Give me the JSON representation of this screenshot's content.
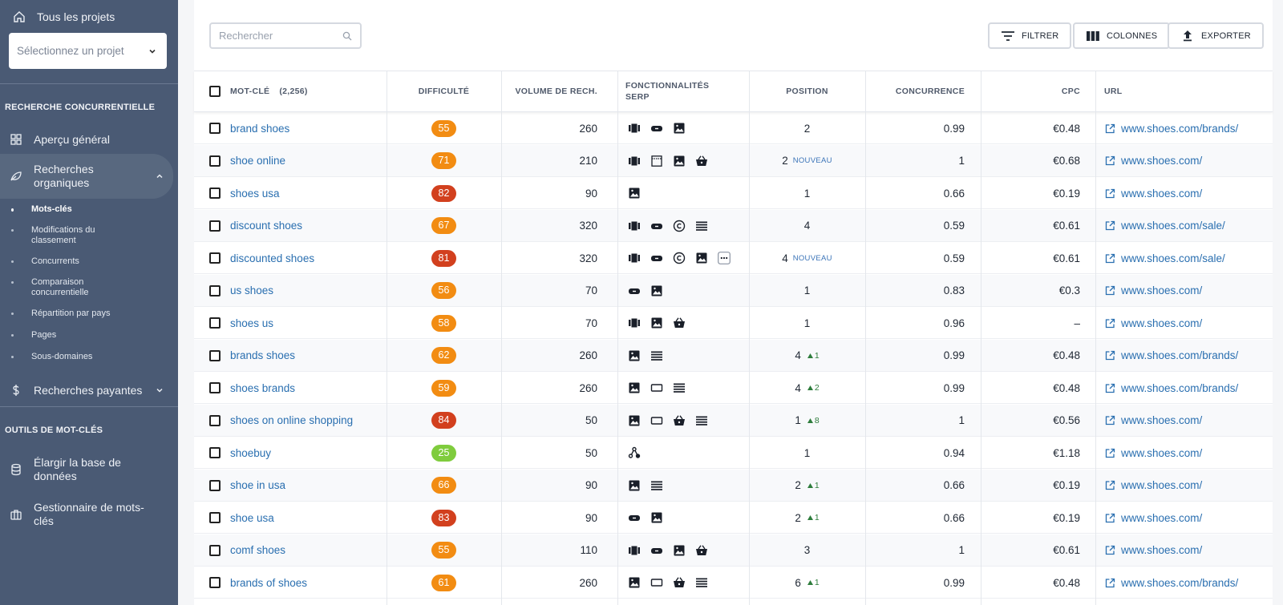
{
  "sidebar": {
    "all_projects": "Tous les projets",
    "project_select_placeholder": "Sélectionnez un projet",
    "section_competitive": "RECHERCHE CONCURRENTIELLE",
    "overview": "Aperçu général",
    "organic": "Recherches organiques",
    "sub_items": [
      "Mots-clés",
      "Modifications du classement",
      "Concurrents",
      "Comparaison concurrentielle",
      "Répartition par pays",
      "Pages",
      "Sous-domaines"
    ],
    "paid": "Recherches payantes",
    "section_tools": "OUTILS DE MOT-CLÉS",
    "expand_db": "Élargir la base de données",
    "keyword_manager": "Gestionnaire de mots-clés"
  },
  "toolbar": {
    "search_placeholder": "Rechercher",
    "filter": "FILTRER",
    "columns": "COLONNES",
    "export": "EXPORTER"
  },
  "table": {
    "headers": {
      "keyword": "MOT-CLÉ",
      "keyword_count": "(2,256)",
      "difficulty": "DIFFICULTÉ",
      "volume": "VOLUME DE RECH.",
      "serp": "FONCTIONNALITÉS SERP",
      "position": "POSITION",
      "competition": "CONCURRENCE",
      "cpc": "CPC",
      "url": "URL"
    },
    "new_label": "NOUVEAU",
    "rows": [
      {
        "kw": "brand shoes",
        "diff": "55",
        "diff_color": "#f28c12",
        "vol": "260",
        "serp": [
          "carousel-icon",
          "video-icon",
          "image-icon"
        ],
        "pos": "2",
        "new": false,
        "delta": "",
        "comp": "0.99",
        "cpc": "€0.48",
        "url": "www.shoes.com/brands/"
      },
      {
        "kw": "shoe online",
        "diff": "71",
        "diff_color": "#f28c12",
        "vol": "210",
        "serp": [
          "carousel-icon",
          "snippet-icon",
          "image-icon",
          "shopping-icon"
        ],
        "pos": "2",
        "new": true,
        "delta": "",
        "comp": "1",
        "cpc": "€0.68",
        "url": "www.shoes.com/"
      },
      {
        "kw": "shoes usa",
        "diff": "82",
        "diff_color": "#d2401e",
        "vol": "90",
        "serp": [
          "image-icon"
        ],
        "pos": "1",
        "new": false,
        "delta": "",
        "comp": "0.66",
        "cpc": "€0.19",
        "url": "www.shoes.com/"
      },
      {
        "kw": "discount shoes",
        "diff": "67",
        "diff_color": "#f28c12",
        "vol": "320",
        "serp": [
          "carousel-icon",
          "video-icon",
          "copyright-icon",
          "list-icon"
        ],
        "pos": "4",
        "new": false,
        "delta": "",
        "comp": "0.59",
        "cpc": "€0.61",
        "url": "www.shoes.com/sale/"
      },
      {
        "kw": "discounted shoes",
        "diff": "81",
        "diff_color": "#d2401e",
        "vol": "320",
        "serp": [
          "carousel-icon",
          "video-icon",
          "copyright-icon",
          "image-icon",
          "more-icon"
        ],
        "pos": "4",
        "new": true,
        "delta": "",
        "comp": "0.59",
        "cpc": "€0.61",
        "url": "www.shoes.com/sale/"
      },
      {
        "kw": "us shoes",
        "diff": "56",
        "diff_color": "#f28c12",
        "vol": "70",
        "serp": [
          "video-icon",
          "image-icon"
        ],
        "pos": "1",
        "new": false,
        "delta": "",
        "comp": "0.83",
        "cpc": "€0.3",
        "url": "www.shoes.com/"
      },
      {
        "kw": "shoes us",
        "diff": "58",
        "diff_color": "#f28c12",
        "vol": "70",
        "serp": [
          "carousel-icon",
          "image-icon",
          "shopping-icon"
        ],
        "pos": "1",
        "new": false,
        "delta": "",
        "comp": "0.96",
        "cpc": "–",
        "url": "www.shoes.com/"
      },
      {
        "kw": "brands shoes",
        "diff": "62",
        "diff_color": "#f28c12",
        "vol": "260",
        "serp": [
          "image-icon",
          "list-icon"
        ],
        "pos": "4",
        "new": false,
        "delta": "1",
        "comp": "0.99",
        "cpc": "€0.48",
        "url": "www.shoes.com/brands/"
      },
      {
        "kw": "shoes brands",
        "diff": "59",
        "diff_color": "#f28c12",
        "vol": "260",
        "serp": [
          "image-icon",
          "ad-icon",
          "list-icon"
        ],
        "pos": "4",
        "new": false,
        "delta": "2",
        "comp": "0.99",
        "cpc": "€0.48",
        "url": "www.shoes.com/brands/"
      },
      {
        "kw": "shoes on online shopping",
        "diff": "84",
        "diff_color": "#d2401e",
        "vol": "50",
        "serp": [
          "image-icon",
          "ad-icon",
          "shopping-icon",
          "list-icon"
        ],
        "pos": "1",
        "new": false,
        "delta": "8",
        "comp": "1",
        "cpc": "€0.56",
        "url": "www.shoes.com/"
      },
      {
        "kw": "shoebuy",
        "diff": "25",
        "diff_color": "#7fcc3d",
        "vol": "50",
        "serp": [
          "graph-icon"
        ],
        "pos": "1",
        "new": false,
        "delta": "",
        "comp": "0.94",
        "cpc": "€1.18",
        "url": "www.shoes.com/"
      },
      {
        "kw": "shoe in usa",
        "diff": "66",
        "diff_color": "#f28c12",
        "vol": "90",
        "serp": [
          "image-icon",
          "list-icon"
        ],
        "pos": "2",
        "new": false,
        "delta": "1",
        "comp": "0.66",
        "cpc": "€0.19",
        "url": "www.shoes.com/"
      },
      {
        "kw": "shoe usa",
        "diff": "83",
        "diff_color": "#d2401e",
        "vol": "90",
        "serp": [
          "video-icon",
          "image-icon"
        ],
        "pos": "2",
        "new": false,
        "delta": "1",
        "comp": "0.66",
        "cpc": "€0.19",
        "url": "www.shoes.com/"
      },
      {
        "kw": "comf shoes",
        "diff": "55",
        "diff_color": "#f28c12",
        "vol": "110",
        "serp": [
          "carousel-icon",
          "video-icon",
          "image-icon",
          "shopping-icon"
        ],
        "pos": "3",
        "new": false,
        "delta": "",
        "comp": "1",
        "cpc": "€0.61",
        "url": "www.shoes.com/"
      },
      {
        "kw": "brands of shoes",
        "diff": "61",
        "diff_color": "#f28c12",
        "vol": "260",
        "serp": [
          "image-icon",
          "ad-icon",
          "shopping-icon",
          "list-icon"
        ],
        "pos": "6",
        "new": false,
        "delta": "1",
        "comp": "0.99",
        "cpc": "€0.48",
        "url": "www.shoes.com/brands/"
      }
    ]
  }
}
